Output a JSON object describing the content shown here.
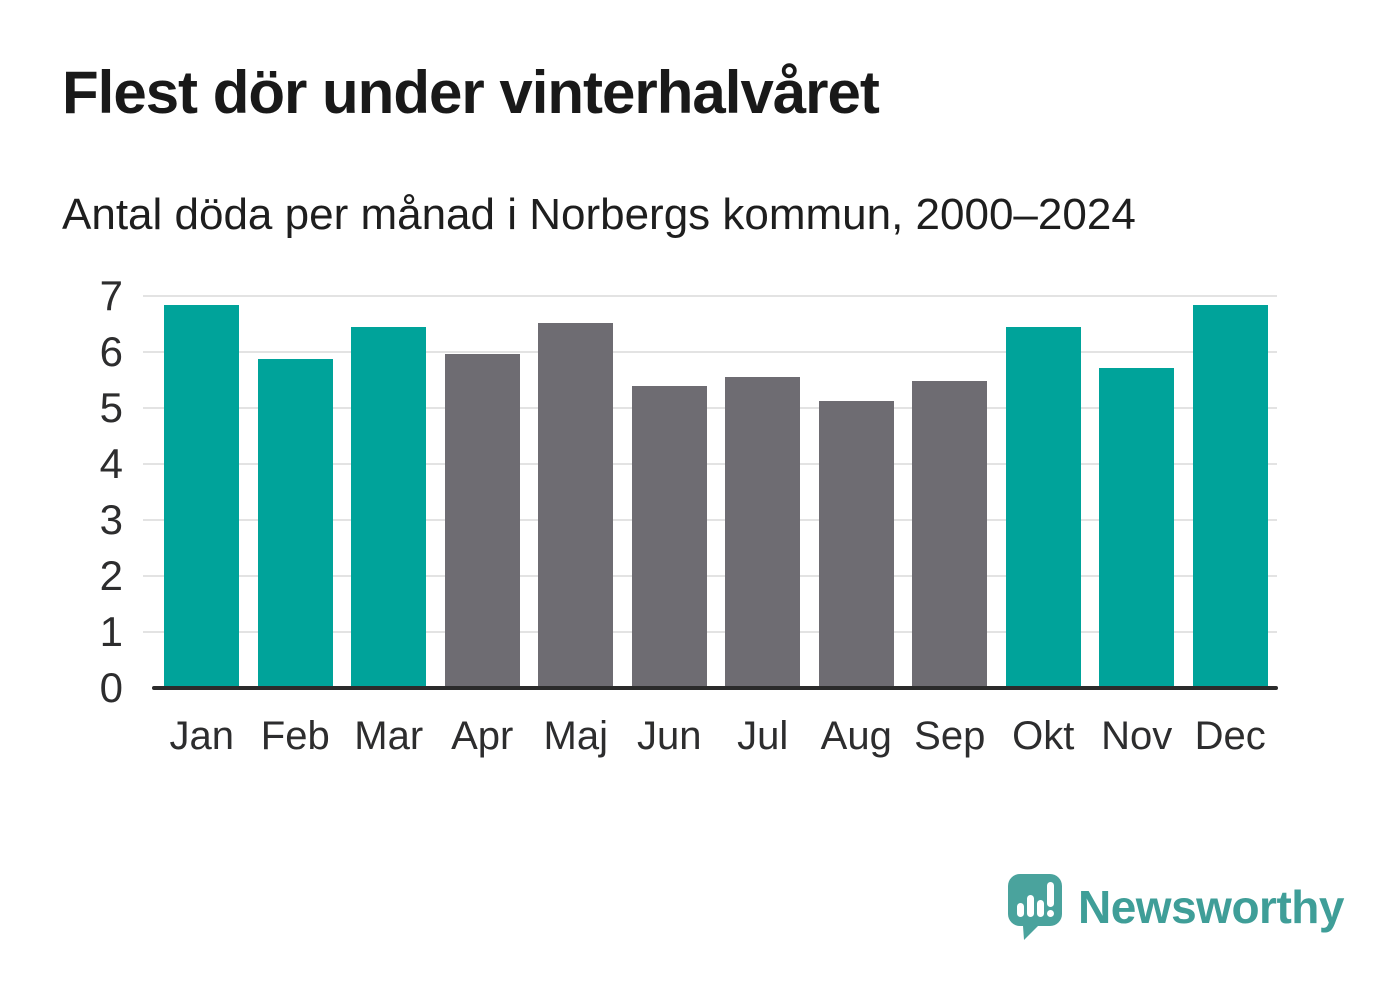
{
  "chart_data": {
    "type": "bar",
    "title": "Flest dör under vinterhalvåret",
    "subtitle": "Antal döda per månad i Norbergs kommun, 2000–2024",
    "categories": [
      "Jan",
      "Feb",
      "Mar",
      "Apr",
      "Maj",
      "Jun",
      "Jul",
      "Aug",
      "Sep",
      "Okt",
      "Nov",
      "Dec"
    ],
    "values": [
      6.84,
      5.88,
      6.44,
      5.96,
      6.52,
      5.4,
      5.56,
      5.12,
      5.48,
      6.44,
      5.72,
      6.84
    ],
    "bar_colors": [
      "#00a39a",
      "#00a39a",
      "#00a39a",
      "#6e6c72",
      "#6e6c72",
      "#6e6c72",
      "#6e6c72",
      "#6e6c72",
      "#6e6c72",
      "#00a39a",
      "#00a39a",
      "#00a39a"
    ],
    "highlight_color": "#00a39a",
    "muted_color": "#6e6c72",
    "xlabel": "",
    "ylabel": "",
    "ylim": [
      0,
      7
    ],
    "yticks": [
      0,
      1,
      2,
      3,
      4,
      5,
      6,
      7
    ],
    "grid": true,
    "legend_position": "none"
  },
  "branding": {
    "logo_text": "Newsworthy",
    "logo_icon": "speech-bubble-bar-chart-icon",
    "logo_bubble_color": "#4aa39d",
    "logo_text_color": "#3f9e98"
  },
  "colors": {
    "background": "#ffffff",
    "gridline": "#e3e3e3",
    "axis_line": "#2b2b2b",
    "title_text": "#191919",
    "subtitle_text": "#1e1e1e",
    "tick_label_text": "#2d2d2e"
  }
}
